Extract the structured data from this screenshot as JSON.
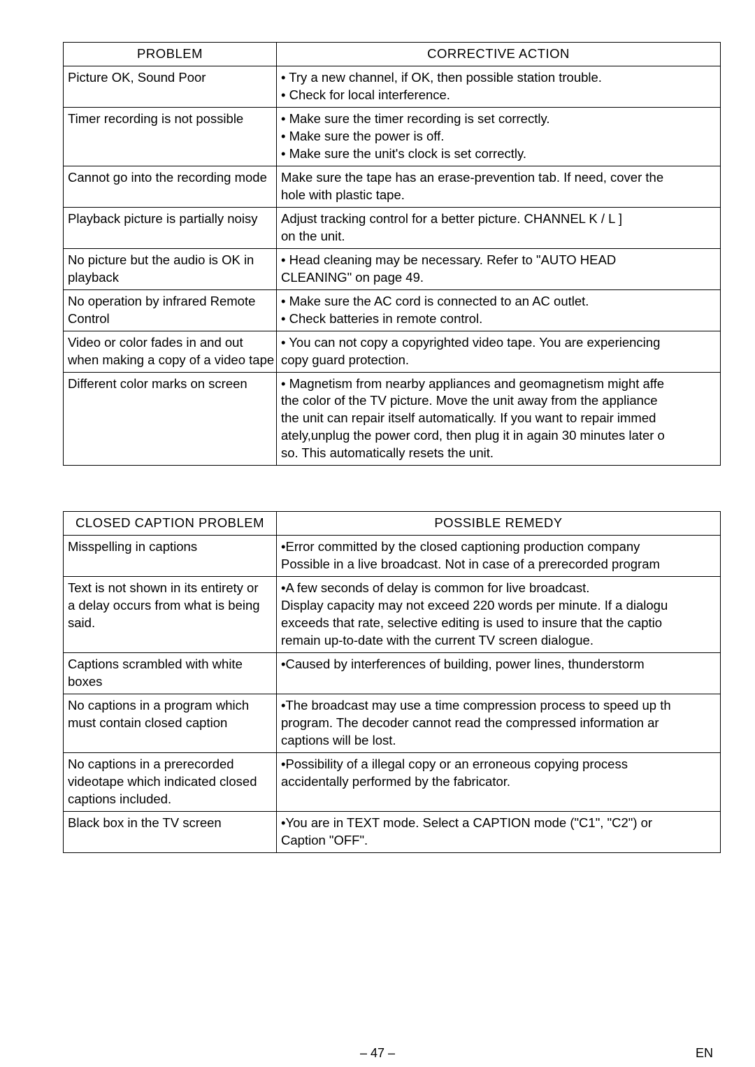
{
  "page": {
    "number_label": "– 47 –",
    "lang_label": "EN"
  },
  "tables": {
    "problems": {
      "headers": {
        "left": "PROBLEM",
        "right": "CORRECTIVE ACTION"
      },
      "rows": [
        {
          "left": "Picture OK, Sound Poor",
          "right_lines": [
            "• Try a new channel, if OK, then possible station trouble.",
            "• Check for local interference."
          ]
        },
        {
          "left": "Timer recording is not possible",
          "right_lines": [
            "• Make sure the timer recording is set correctly.",
            "• Make sure the power is off.",
            "• Make sure the unit's clock is set correctly."
          ]
        },
        {
          "left": "Cannot go into the recording mode",
          "right_lines": [
            "Make sure the tape has an erase-prevention tab. If need, cover the",
            "hole with plastic tape."
          ]
        },
        {
          "left": "Playback picture is partially noisy",
          "right_lines": [
            "Adjust tracking control for a better picture. CHANNEL K / L ]",
            "on the unit."
          ]
        },
        {
          "left_lines": [
            "No picture but the audio is OK in",
            "playback"
          ],
          "right_lines": [
            "• Head cleaning may be necessary. Refer to \"AUTO HEAD",
            "  CLEANING\" on page 49."
          ]
        },
        {
          "left_lines": [
            "No operation by infrared Remote",
            "Control"
          ],
          "right_lines": [
            "• Make sure the AC cord is connected to an AC outlet.",
            "• Check batteries in remote control."
          ]
        },
        {
          "left_lines": [
            "Video or color fades in and out",
            "when making a copy of a video tape"
          ],
          "right_lines": [
            "• You can not copy a copyrighted video tape. You are experiencing",
            "  copy guard protection."
          ]
        },
        {
          "left": "Different color marks on screen",
          "right_lines": [
            "• Magnetism from nearby appliances and geomagnetism might affe",
            "  the color of the TV picture. Move the unit away from the appliance",
            "  the unit can repair itself automatically. If you want to repair immed",
            "  ately,unplug the power cord, then plug it in again 30 minutes later o",
            "  so. This automatically resets the unit."
          ]
        }
      ]
    },
    "captions": {
      "headers": {
        "left": "CLOSED CAPTION PROBLEM",
        "right": "POSSIBLE REMEDY"
      },
      "rows": [
        {
          "left": "Misspelling in captions",
          "right_lines": [
            "      •Error committed by the closed captioning production company",
            "Possible in a live broadcast. Not in case of a prerecorded program"
          ]
        },
        {
          "left_lines": [
            "Text is not shown in its entirety or",
            "a delay occurs from what is being",
            "said."
          ],
          "right_lines": [
            "  •A few seconds of delay is common for live broadcast.",
            "Display capacity may not exceed 220 words per minute. If a dialogu",
            "   exceeds that rate, selective editing is used to insure that the captio",
            "   remain up-to-date with the current TV screen dialogue."
          ]
        },
        {
          "left_lines": [
            "Captions scrambled with white",
            "boxes"
          ],
          "right_lines": [
            "      •Caused by interferences of building, power lines, thunderstorm"
          ]
        },
        {
          "left_lines": [
            "No captions in a program which",
            "must contain closed caption"
          ],
          "right_lines": [
            "•The broadcast may use a time compression process to speed up th",
            "   program. The decoder cannot read the compressed information ar",
            "   captions will be lost."
          ]
        },
        {
          "left_lines": [
            "No captions in a prerecorded",
            "videotape which indicated closed",
            "captions included."
          ],
          "right_lines": [
            "•Possibility of a illegal copy or an erroneous copying process",
            " accidentally performed by the fabricator."
          ]
        },
        {
          "left": "Black box in the TV screen",
          "right_lines": [
            "      •You are in TEXT mode. Select a CAPTION mode (\"C1\", \"C2\") or",
            "Caption \"OFF\"."
          ]
        }
      ]
    }
  }
}
